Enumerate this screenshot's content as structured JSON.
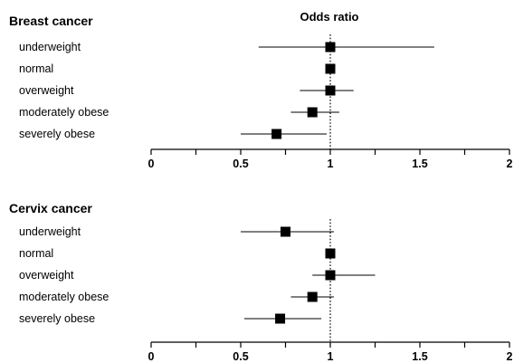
{
  "x_title": "Odds ratio",
  "chart_data": [
    {
      "type": "forest",
      "title": "Breast cancer",
      "xlabel": "Odds ratio",
      "xlim": [
        0,
        2
      ],
      "xticks": [
        0,
        0.5,
        1,
        1.5,
        2
      ],
      "xtick_labels": [
        "0",
        "0.5",
        "1",
        "1.5",
        "2"
      ],
      "reference_line": 1,
      "categories": [
        "underweight",
        "normal",
        "overweight",
        "moderately obese",
        "severely obese"
      ],
      "values": [
        1.0,
        1.0,
        1.0,
        0.9,
        0.7
      ],
      "ci_low": [
        0.6,
        1.0,
        0.83,
        0.78,
        0.5
      ],
      "ci_high": [
        1.58,
        1.0,
        1.13,
        1.05,
        0.98
      ]
    },
    {
      "type": "forest",
      "title": "Cervix cancer",
      "xlabel": "",
      "xlim": [
        0,
        2
      ],
      "xticks": [
        0,
        0.5,
        1,
        1.5,
        2
      ],
      "xtick_labels": [
        "0",
        "0.5",
        "1",
        "1.5",
        "2"
      ],
      "reference_line": 1,
      "categories": [
        "underweight",
        "normal",
        "overweight",
        "moderately obese",
        "severely obese"
      ],
      "values": [
        0.75,
        1.0,
        1.0,
        0.9,
        0.72
      ],
      "ci_low": [
        0.5,
        1.0,
        0.9,
        0.78,
        0.52
      ],
      "ci_high": [
        1.02,
        1.0,
        1.25,
        1.02,
        0.95
      ]
    }
  ]
}
